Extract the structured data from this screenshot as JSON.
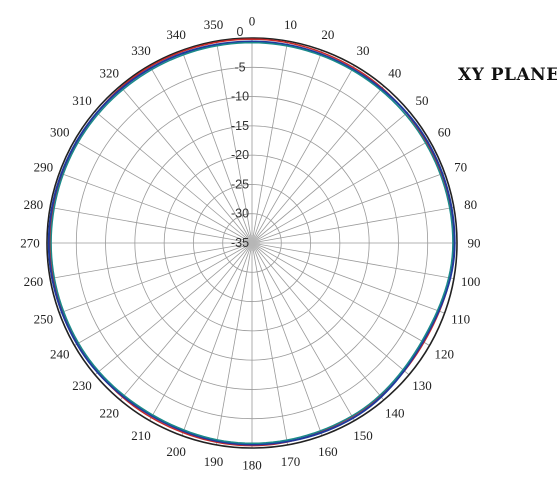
{
  "chart_data": {
    "type": "polar-line",
    "title": "XY PLANE",
    "angle_unit": "degrees",
    "angle_ticks": [
      0,
      10,
      20,
      30,
      40,
      50,
      60,
      70,
      80,
      90,
      100,
      110,
      120,
      130,
      140,
      150,
      160,
      170,
      180,
      190,
      200,
      210,
      220,
      230,
      240,
      250,
      260,
      270,
      280,
      290,
      300,
      310,
      320,
      330,
      340,
      350
    ],
    "angle_labels": [
      "0",
      "10",
      "20",
      "30",
      "40",
      "50",
      "60",
      "70",
      "80",
      "90",
      "100",
      "110",
      "120",
      "130",
      "140",
      "150",
      "160",
      "170",
      "180",
      "190",
      "200",
      "210",
      "220",
      "230",
      "240",
      "250",
      "260",
      "270",
      "280",
      "290",
      "300",
      "310",
      "320",
      "330",
      "340",
      "350"
    ],
    "radial_ticks": [
      0,
      -5,
      -10,
      -15,
      -20,
      -25,
      -30,
      -35
    ],
    "radial_labels": [
      "0",
      "-5",
      "-10",
      "-15",
      "-20",
      "-25",
      "-30",
      "-35"
    ],
    "rlim": [
      -35,
      0
    ],
    "grid": true,
    "angle_step_grid": 10,
    "series": [
      {
        "color": "#c62828",
        "angles": [
          0,
          30,
          60,
          90,
          120,
          150,
          180,
          210,
          240,
          270,
          300,
          330
        ],
        "values": [
          -0.2,
          -0.4,
          -0.6,
          -0.5,
          -1.1,
          -0.8,
          -0.4,
          -0.6,
          -0.7,
          -0.5,
          -0.5,
          -0.2
        ]
      },
      {
        "color": "#1f3a9e",
        "angles": [
          0,
          30,
          60,
          90,
          120,
          150,
          180,
          210,
          240,
          270,
          300,
          330
        ],
        "values": [
          -0.6,
          -0.7,
          -0.4,
          -0.4,
          -1.3,
          -0.5,
          -0.6,
          -0.9,
          -0.5,
          -0.3,
          -0.4,
          -0.5
        ]
      },
      {
        "color": "#1a8a8a",
        "angles": [
          0,
          30,
          60,
          90,
          120,
          150,
          180,
          210,
          240,
          270,
          300,
          330
        ],
        "values": [
          -0.8,
          -0.9,
          -0.8,
          -0.7,
          -1.5,
          -0.9,
          -0.8,
          -1.1,
          -0.8,
          -0.7,
          -0.7,
          -0.8
        ]
      }
    ]
  }
}
